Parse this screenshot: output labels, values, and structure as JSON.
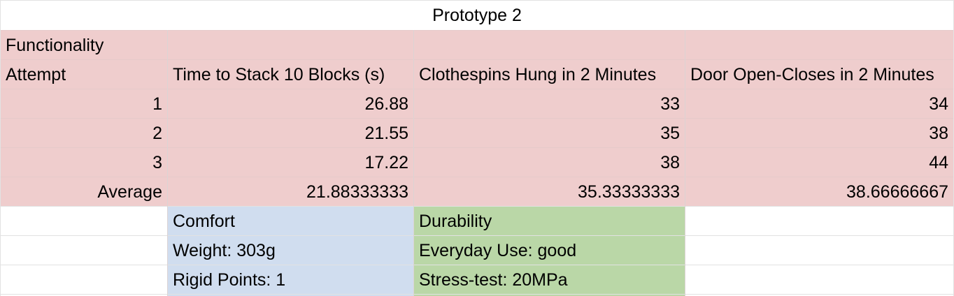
{
  "title": "Prototype 2",
  "functionality": {
    "section_label": "Functionality",
    "headers": [
      "Attempt",
      "Time to Stack 10 Blocks (s)",
      "Clothespins Hung in 2 Minutes",
      "Door Open-Closes in 2 Minutes"
    ],
    "rows": [
      [
        "1",
        "26.88",
        "33",
        "34"
      ],
      [
        "2",
        "21.55",
        "35",
        "38"
      ],
      [
        "3",
        "17.22",
        "38",
        "44"
      ],
      [
        "Average",
        "21.88333333",
        "35.33333333",
        "38.66666667"
      ]
    ]
  },
  "comfort": {
    "label": "Comfort",
    "items": [
      "Weight: 303g",
      "Rigid Points: 1"
    ]
  },
  "durability": {
    "label": "Durability",
    "items": [
      "Everyday Use: good",
      "Stress-test: 20MPa"
    ]
  },
  "colors": {
    "functionality_fill": "#efcdcd",
    "comfort_fill": "#d0ddef",
    "durability_fill": "#bad7a7",
    "gridline": "#e2e2e2"
  }
}
